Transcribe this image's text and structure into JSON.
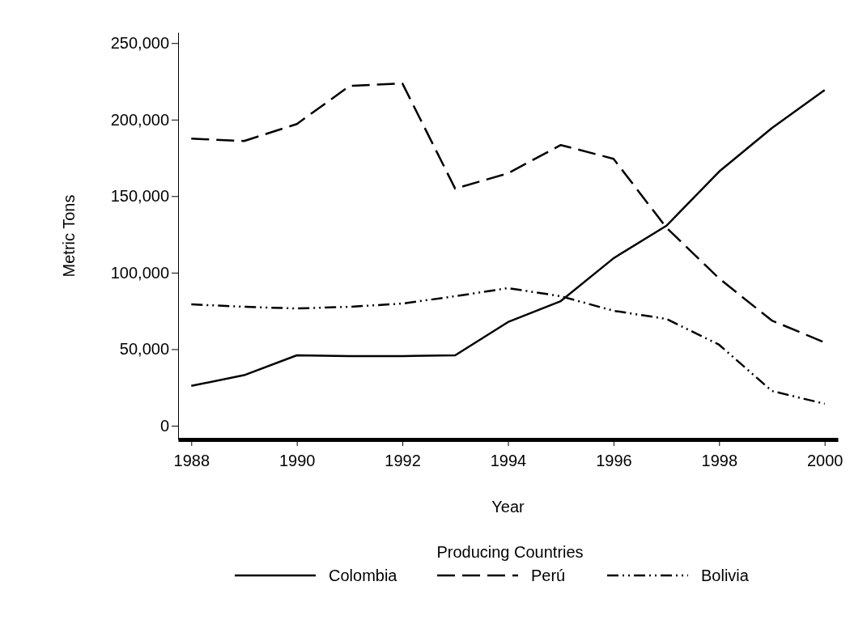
{
  "chart_data": {
    "type": "line",
    "xlabel": "Year",
    "ylabel": "Metric Tons",
    "legend_title": "Producing Countries",
    "legend": "bottom",
    "grid": false,
    "marker": "none",
    "x": [
      1988,
      1989,
      1990,
      1991,
      1992,
      1993,
      1994,
      1995,
      1996,
      1997,
      1998,
      1999,
      2000
    ],
    "xlim": [
      1987.75,
      2000.25
    ],
    "xticks": [
      1988,
      1990,
      1992,
      1994,
      1996,
      1998,
      2000
    ],
    "ylim": [
      -9000,
      257000
    ],
    "yticks": [
      {
        "value": 0,
        "label": "0"
      },
      {
        "value": 50000,
        "label": "50,000"
      },
      {
        "value": 100000,
        "label": "100,000"
      },
      {
        "value": 150000,
        "label": "150,000"
      },
      {
        "value": 200000,
        "label": "200,000"
      },
      {
        "value": 250000,
        "label": "250,000"
      }
    ],
    "series": [
      {
        "name": "Colombia",
        "color": "#000000",
        "line_style": "solid",
        "values": [
          26000,
          33000,
          46000,
          45500,
          45500,
          46000,
          67700,
          81400,
          109400,
          130600,
          166000,
          194500,
          219300
        ]
      },
      {
        "name": "Perú",
        "color": "#000000",
        "line_style": "dashed",
        "values": [
          187600,
          186000,
          197100,
          222000,
          223600,
          154900,
          164900,
          183400,
          174400,
          129500,
          96200,
          68700,
          54400
        ]
      },
      {
        "name": "Bolivia",
        "color": "#000000",
        "line_style": "dashdot",
        "values": [
          79300,
          77700,
          76600,
          77700,
          79800,
          84600,
          89900,
          84600,
          75100,
          69800,
          52900,
          22700,
          14300
        ]
      }
    ]
  }
}
